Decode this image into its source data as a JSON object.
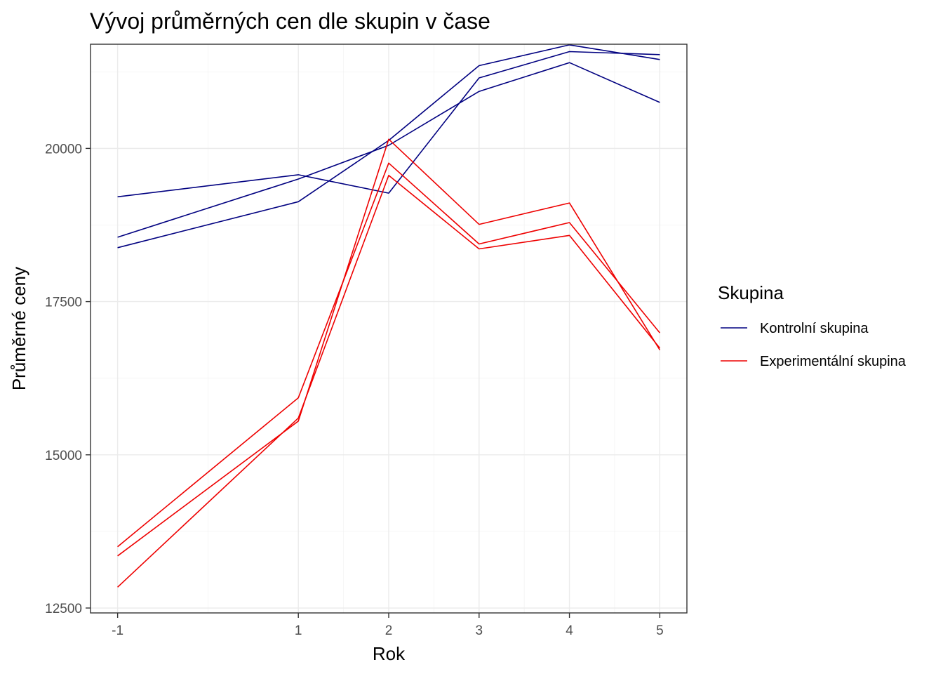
{
  "chart_data": {
    "type": "line",
    "title": "Vývoj průměrných cen dle skupin v čase",
    "xlabel": "Rok",
    "ylabel": "Průměrné ceny",
    "x_ticks": [
      -1,
      1,
      2,
      3,
      4,
      5
    ],
    "y_ticks": [
      12500,
      15000,
      17500,
      20000
    ],
    "xlim": [
      -1.3,
      5.3
    ],
    "ylim": [
      12420,
      21700
    ],
    "grid": true,
    "legend": {
      "title": "Skupina",
      "placement": "right",
      "entries": [
        {
          "label": "Kontrolní skupina",
          "color": "#000080"
        },
        {
          "label": "Experimentální skupina",
          "color": "#ee0000"
        }
      ]
    },
    "x": [
      -1,
      1,
      2,
      3,
      4,
      5
    ],
    "series": [
      {
        "group": "Kontrolní skupina",
        "color": "#000080",
        "values": [
          19210,
          19570,
          19270,
          21150,
          21580,
          21530
        ]
      },
      {
        "group": "Kontrolní skupina",
        "color": "#000080",
        "values": [
          18380,
          19130,
          20130,
          21350,
          21690,
          21450
        ]
      },
      {
        "group": "Kontrolní skupina",
        "color": "#000080",
        "values": [
          18550,
          19500,
          20050,
          20930,
          21400,
          20750
        ]
      },
      {
        "group": "Experimentální skupina",
        "color": "#ee0000",
        "values": [
          13350,
          15550,
          20150,
          18760,
          19110,
          16710
        ]
      },
      {
        "group": "Experimentální skupina",
        "color": "#ee0000",
        "values": [
          13500,
          15930,
          19760,
          18440,
          18790,
          16990
        ]
      },
      {
        "group": "Experimentální skupina",
        "color": "#ee0000",
        "values": [
          12840,
          15600,
          19560,
          18360,
          18580,
          16740
        ]
      }
    ]
  }
}
